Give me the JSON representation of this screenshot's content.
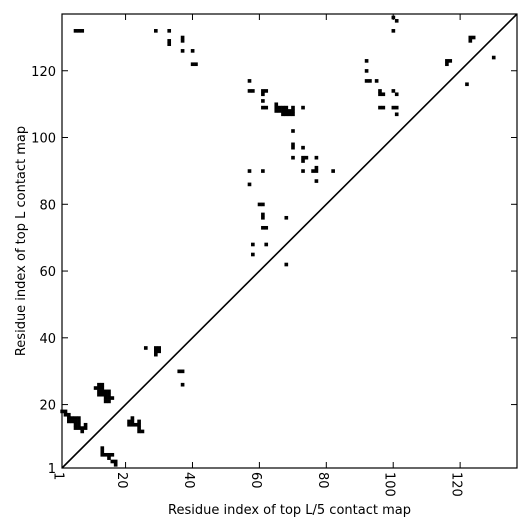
{
  "chart_data": {
    "type": "scatter",
    "xlabel": "Residue index of top L/5 contact map",
    "ylabel": "Residue index of top L contact map",
    "xlim": [
      1,
      137
    ],
    "ylim": [
      1,
      137
    ],
    "x_ticks": [
      1,
      20,
      40,
      60,
      80,
      100,
      120
    ],
    "y_ticks": [
      1,
      20,
      40,
      60,
      80,
      100,
      120
    ],
    "grid": false,
    "diagonal": true,
    "lower_triangle_points": [
      [
        1,
        18
      ],
      [
        2,
        18
      ],
      [
        2,
        17
      ],
      [
        3,
        17
      ],
      [
        3,
        16
      ],
      [
        3,
        15
      ],
      [
        4,
        16
      ],
      [
        4,
        15
      ],
      [
        5,
        16
      ],
      [
        5,
        15
      ],
      [
        5,
        14
      ],
      [
        5,
        13
      ],
      [
        6,
        16
      ],
      [
        6,
        15
      ],
      [
        6,
        14
      ],
      [
        6,
        13
      ],
      [
        7,
        13
      ],
      [
        7,
        12
      ],
      [
        8,
        14
      ],
      [
        8,
        13
      ],
      [
        11,
        25
      ],
      [
        12,
        26
      ],
      [
        12,
        25
      ],
      [
        12,
        24
      ],
      [
        12,
        23
      ],
      [
        13,
        26
      ],
      [
        13,
        25
      ],
      [
        13,
        24
      ],
      [
        13,
        23
      ],
      [
        14,
        24
      ],
      [
        14,
        23
      ],
      [
        14,
        22
      ],
      [
        14,
        21
      ],
      [
        15,
        24
      ],
      [
        15,
        23
      ],
      [
        15,
        22
      ],
      [
        15,
        21
      ],
      [
        16,
        22
      ],
      [
        13,
        7
      ],
      [
        13,
        6
      ],
      [
        13,
        5
      ],
      [
        14,
        5
      ],
      [
        15,
        5
      ],
      [
        15,
        4
      ],
      [
        16,
        5
      ],
      [
        16,
        3
      ],
      [
        17,
        3
      ],
      [
        17,
        2
      ],
      [
        21,
        15
      ],
      [
        21,
        14
      ],
      [
        22,
        16
      ],
      [
        22,
        15
      ],
      [
        22,
        14
      ],
      [
        23,
        14
      ],
      [
        24,
        15
      ],
      [
        24,
        14
      ],
      [
        24,
        13
      ],
      [
        24,
        12
      ],
      [
        25,
        12
      ],
      [
        26,
        37
      ],
      [
        29,
        37
      ],
      [
        29,
        36
      ],
      [
        29,
        35
      ],
      [
        30,
        37
      ],
      [
        30,
        36
      ],
      [
        36,
        30
      ],
      [
        37,
        30
      ],
      [
        37,
        26
      ]
    ],
    "upper_triangle_points": [
      [
        5,
        132
      ],
      [
        6,
        132
      ],
      [
        7,
        132
      ],
      [
        29,
        132
      ],
      [
        33,
        132
      ],
      [
        33,
        129
      ],
      [
        33,
        128
      ],
      [
        37,
        130
      ],
      [
        37,
        129
      ],
      [
        37,
        126
      ],
      [
        40,
        126
      ],
      [
        40,
        122
      ],
      [
        41,
        122
      ],
      [
        57,
        117
      ],
      [
        57,
        114
      ],
      [
        58,
        114
      ],
      [
        61,
        114
      ],
      [
        61,
        113
      ],
      [
        61,
        111
      ],
      [
        61,
        109
      ],
      [
        62,
        114
      ],
      [
        62,
        109
      ],
      [
        57,
        90
      ],
      [
        57,
        86
      ],
      [
        61,
        90
      ],
      [
        65,
        110
      ],
      [
        65,
        109
      ],
      [
        65,
        108
      ],
      [
        66,
        109
      ],
      [
        66,
        108
      ],
      [
        67,
        109
      ],
      [
        67,
        108
      ],
      [
        67,
        107
      ],
      [
        68,
        109
      ],
      [
        68,
        108
      ],
      [
        68,
        107
      ],
      [
        69,
        108
      ],
      [
        69,
        107
      ],
      [
        70,
        109
      ],
      [
        70,
        108
      ],
      [
        70,
        107
      ],
      [
        73,
        109
      ],
      [
        70,
        102
      ],
      [
        70,
        98
      ],
      [
        70,
        97
      ],
      [
        70,
        94
      ],
      [
        73,
        97
      ],
      [
        73,
        94
      ],
      [
        73,
        93
      ],
      [
        73,
        90
      ],
      [
        74,
        94
      ],
      [
        77,
        94
      ],
      [
        77,
        91
      ],
      [
        77,
        90
      ],
      [
        76,
        90
      ],
      [
        77,
        87
      ],
      [
        82,
        90
      ],
      [
        58,
        68
      ],
      [
        58,
        65
      ],
      [
        60,
        80
      ],
      [
        61,
        80
      ],
      [
        61,
        77
      ],
      [
        61,
        76
      ],
      [
        61,
        73
      ],
      [
        62,
        73
      ],
      [
        62,
        68
      ],
      [
        68,
        76
      ],
      [
        68,
        62
      ],
      [
        92,
        123
      ],
      [
        92,
        120
      ],
      [
        92,
        117
      ],
      [
        93,
        117
      ],
      [
        95,
        117
      ],
      [
        96,
        114
      ],
      [
        96,
        113
      ],
      [
        97,
        113
      ],
      [
        96,
        109
      ],
      [
        97,
        109
      ],
      [
        100,
        114
      ],
      [
        101,
        113
      ],
      [
        100,
        109
      ],
      [
        101,
        109
      ],
      [
        101,
        107
      ],
      [
        100,
        132
      ],
      [
        101,
        135
      ],
      [
        100,
        136
      ],
      [
        116,
        123
      ],
      [
        117,
        123
      ],
      [
        116,
        122
      ],
      [
        122,
        116
      ],
      [
        123,
        130
      ],
      [
        123,
        129
      ],
      [
        124,
        130
      ],
      [
        130,
        124
      ]
    ]
  }
}
